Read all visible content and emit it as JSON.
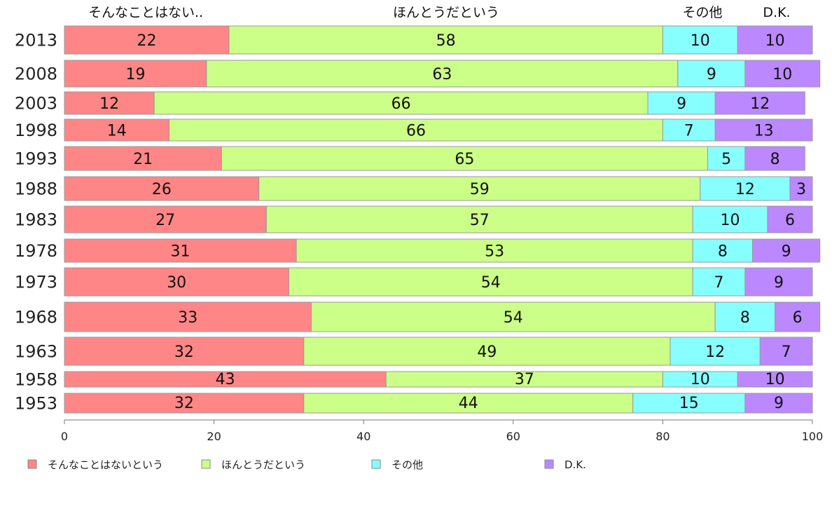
{
  "chart_data": {
    "type": "bar",
    "orientation": "horizontal",
    "stacked": true,
    "categories": [
      "2013",
      "2008",
      "2003",
      "1998",
      "1993",
      "1988",
      "1983",
      "1978",
      "1973",
      "1968",
      "1963",
      "1958",
      "1953"
    ],
    "series": [
      {
        "name": "そんなことはないという",
        "color": "#ff8686",
        "values": [
          22,
          19,
          12,
          14,
          21,
          26,
          27,
          31,
          30,
          33,
          32,
          43,
          32
        ]
      },
      {
        "name": "ほんとうだという",
        "color": "#ccff88",
        "values": [
          58,
          63,
          66,
          66,
          65,
          59,
          57,
          53,
          54,
          54,
          49,
          37,
          44
        ]
      },
      {
        "name": "その他",
        "color": "#88ffff",
        "values": [
          10,
          9,
          9,
          7,
          5,
          12,
          10,
          8,
          7,
          8,
          12,
          10,
          15
        ]
      },
      {
        "name": "D.K.",
        "color": "#bb88ff",
        "values": [
          10,
          10,
          12,
          13,
          8,
          3,
          6,
          9,
          9,
          6,
          7,
          10,
          9
        ]
      }
    ],
    "top_labels": [
      "そんなことはない..",
      "ほんとうだという",
      "その他",
      "D.K."
    ],
    "xlim": [
      0,
      100
    ],
    "xticks": [
      0,
      20,
      40,
      60,
      80,
      100
    ],
    "legend_position": "bottom",
    "grid": false,
    "xlabel": "",
    "ylabel": "",
    "title": ""
  }
}
